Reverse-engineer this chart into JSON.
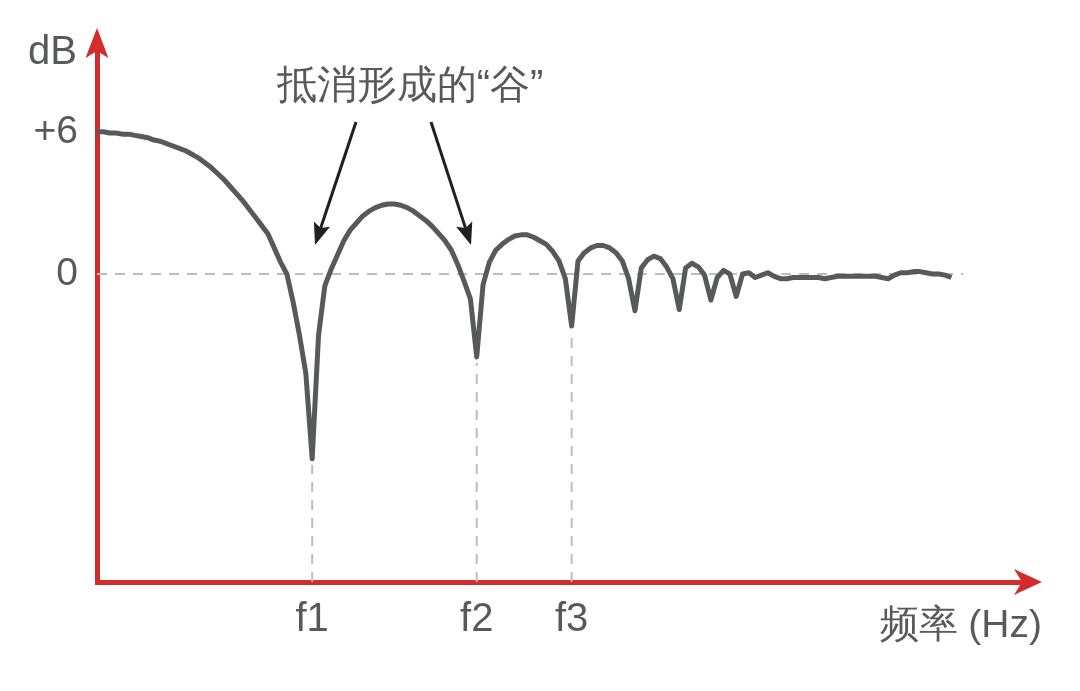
{
  "chart_data": {
    "type": "line",
    "annotations": [
      "抵消形成的“谷”"
    ],
    "xlabel": "频率 (Hz)",
    "ylabel": "dB",
    "categories": [
      null,
      null,
      null,
      null,
      null,
      null,
      null,
      null,
      null,
      null,
      null,
      null,
      null,
      null,
      null,
      null,
      null,
      null,
      null,
      null,
      null,
      null,
      null,
      null,
      null,
      null,
      null,
      null,
      null,
      null,
      null,
      null,
      null,
      null,
      "f1",
      null,
      null,
      null,
      null,
      null,
      null,
      null,
      null,
      null,
      null,
      null,
      null,
      null,
      null,
      null,
      null,
      null,
      null,
      null,
      null,
      null,
      null,
      null,
      null,
      null,
      "f2",
      null,
      null,
      null,
      null,
      null,
      null,
      null,
      null,
      null,
      null,
      null,
      null,
      null,
      null,
      "f3",
      null,
      null,
      null,
      null,
      null,
      null,
      null,
      null,
      null,
      null,
      null,
      null,
      null,
      null,
      null,
      null,
      null,
      null,
      null,
      null,
      null,
      null,
      null,
      null,
      null,
      null,
      null,
      null,
      null,
      null,
      null,
      null,
      null,
      null,
      null,
      null,
      null,
      null,
      null,
      null,
      null,
      null,
      null,
      null,
      null,
      null,
      null,
      null,
      null,
      null,
      null,
      null,
      null,
      null,
      null,
      null,
      null,
      null,
      null,
      null,
      null,
      null,
      null,
      null,
      null,
      null,
      null,
      null,
      null,
      null,
      null
    ],
    "series": [
      {
        "color": "#58595b",
        "values": [
          6.0,
          6.0,
          5.95,
          5.95,
          5.9,
          5.9,
          5.85,
          5.8,
          5.75,
          5.65,
          5.6,
          5.5,
          5.4,
          5.3,
          5.2,
          5.05,
          4.9,
          4.7,
          4.5,
          4.25,
          4.0,
          3.7,
          3.4,
          3.1,
          2.75,
          2.4,
          2.05,
          1.7,
          1.1,
          0.5,
          0.0,
          -1.2,
          -2.6,
          -4.2,
          -7.8,
          -2.6,
          -0.5,
          0.2,
          0.8,
          1.4,
          1.85,
          2.15,
          2.45,
          2.65,
          2.8,
          2.9,
          2.95,
          2.95,
          2.9,
          2.8,
          2.65,
          2.45,
          2.25,
          2.0,
          1.7,
          1.4,
          1.0,
          0.4,
          -0.3,
          -1.05,
          -3.5,
          -0.45,
          0.5,
          1.0,
          1.25,
          1.45,
          1.6,
          1.65,
          1.65,
          1.55,
          1.4,
          1.25,
          0.95,
          0.55,
          -0.2,
          -2.2,
          0.55,
          0.9,
          1.1,
          1.2,
          1.2,
          1.1,
          0.9,
          0.55,
          -0.2,
          -1.55,
          0.25,
          0.6,
          0.75,
          0.65,
          0.3,
          -0.2,
          -1.5,
          0.25,
          0.45,
          0.3,
          -0.05,
          -1.1,
          -0.15,
          0.15,
          0.0,
          -0.95,
          0.0,
          0.05,
          -0.15,
          -0.05,
          0.05,
          -0.1,
          -0.2,
          -0.2,
          -0.15,
          -0.15,
          -0.15,
          -0.15,
          -0.15,
          -0.2,
          -0.15,
          -0.1,
          -0.1,
          -0.1,
          -0.1,
          -0.1,
          -0.1,
          -0.1,
          -0.15,
          -0.2,
          -0.05,
          0.05,
          0.05,
          0.1,
          0.1,
          0.05,
          0.0,
          0.0,
          -0.05,
          -0.15,
          null,
          null,
          null,
          null,
          null,
          null,
          null,
          null,
          null,
          null,
          null
        ]
      }
    ],
    "ylim": [
      -13,
      10
    ],
    "yticks": [
      {
        "value": 6,
        "label": "+6"
      },
      0
    ],
    "ref_lines": [
      {
        "axis": "y",
        "value": 0,
        "color": "#bdbdbd",
        "line_style": "dashed"
      },
      {
        "axis": "x",
        "value": "f1",
        "color": "#bdbdbd",
        "line_style": "dashed"
      },
      {
        "axis": "x",
        "value": "f2",
        "color": "#bdbdbd",
        "line_style": "dashed"
      },
      {
        "axis": "x",
        "value": "f3",
        "color": "#bdbdbd",
        "line_style": "dashed"
      }
    ],
    "grid": false,
    "legend": false,
    "marker": "none",
    "line_style": "solid"
  }
}
